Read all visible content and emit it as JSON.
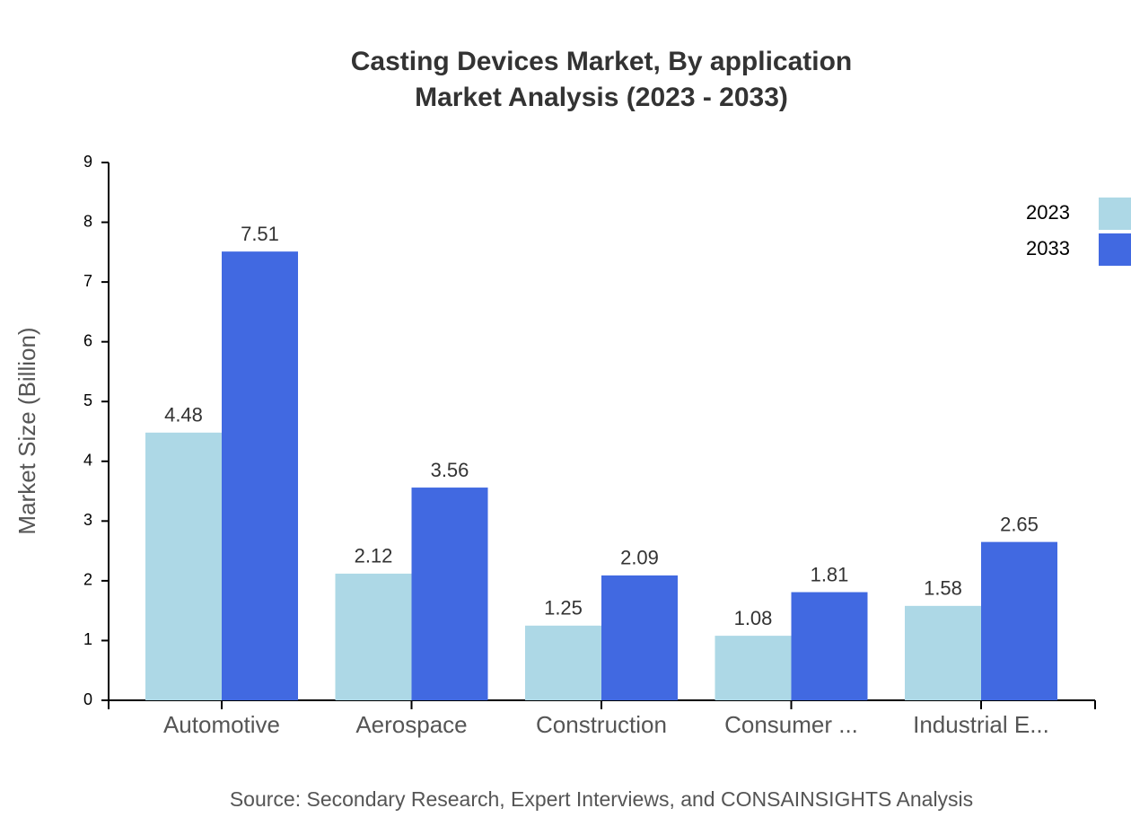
{
  "chart_data": {
    "type": "bar",
    "title": "Casting Devices Market, By application",
    "subtitle": "Market Analysis (2023 - 2033)",
    "y_label": "Market Size (Billion)",
    "source": "Source: Secondary Research, Expert Interviews, and CONSAINSIGHTS Analysis",
    "categories": [
      "Automotive",
      "Aerospace",
      "Construction",
      "Consumer ...",
      "Industrial E..."
    ],
    "series": [
      {
        "name": "2023",
        "color": "#add8e6",
        "values": [
          4.48,
          2.12,
          1.25,
          1.08,
          1.58
        ]
      },
      {
        "name": "2033",
        "color": "#4169e1",
        "values": [
          7.51,
          3.56,
          2.09,
          1.81,
          2.65
        ]
      }
    ],
    "ylim": [
      0,
      9
    ],
    "yticks": [
      0,
      1,
      2,
      3,
      4,
      5,
      6,
      7,
      8,
      9
    ],
    "legend": "top-right"
  }
}
